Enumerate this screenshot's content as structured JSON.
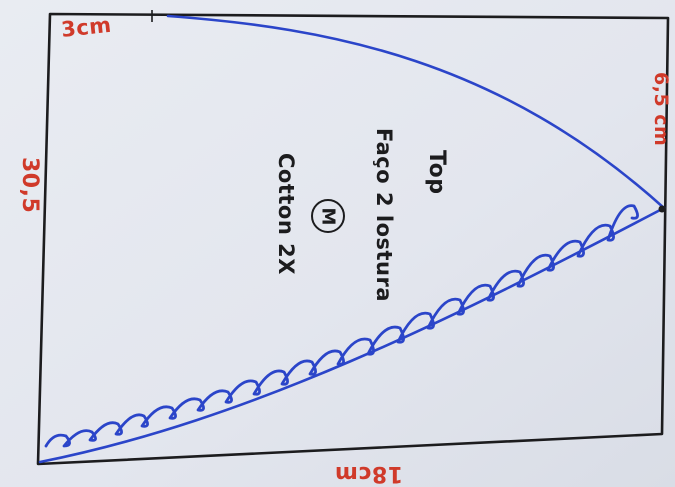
{
  "diagram": {
    "measurements": {
      "top_width": "3cm",
      "right_height": "6,5 cm",
      "left_height": "30,5",
      "bottom_width": "18cm"
    },
    "notes": {
      "line_1": "Top",
      "line_2": "Faço 2 lostura",
      "size": "M",
      "line_3": "Cotton 2X"
    },
    "colors": {
      "outline": "#1c1c1e",
      "curve": "#2b45c9",
      "measure_text": "#d03a2a",
      "note_text": "#1c1c1e"
    }
  }
}
